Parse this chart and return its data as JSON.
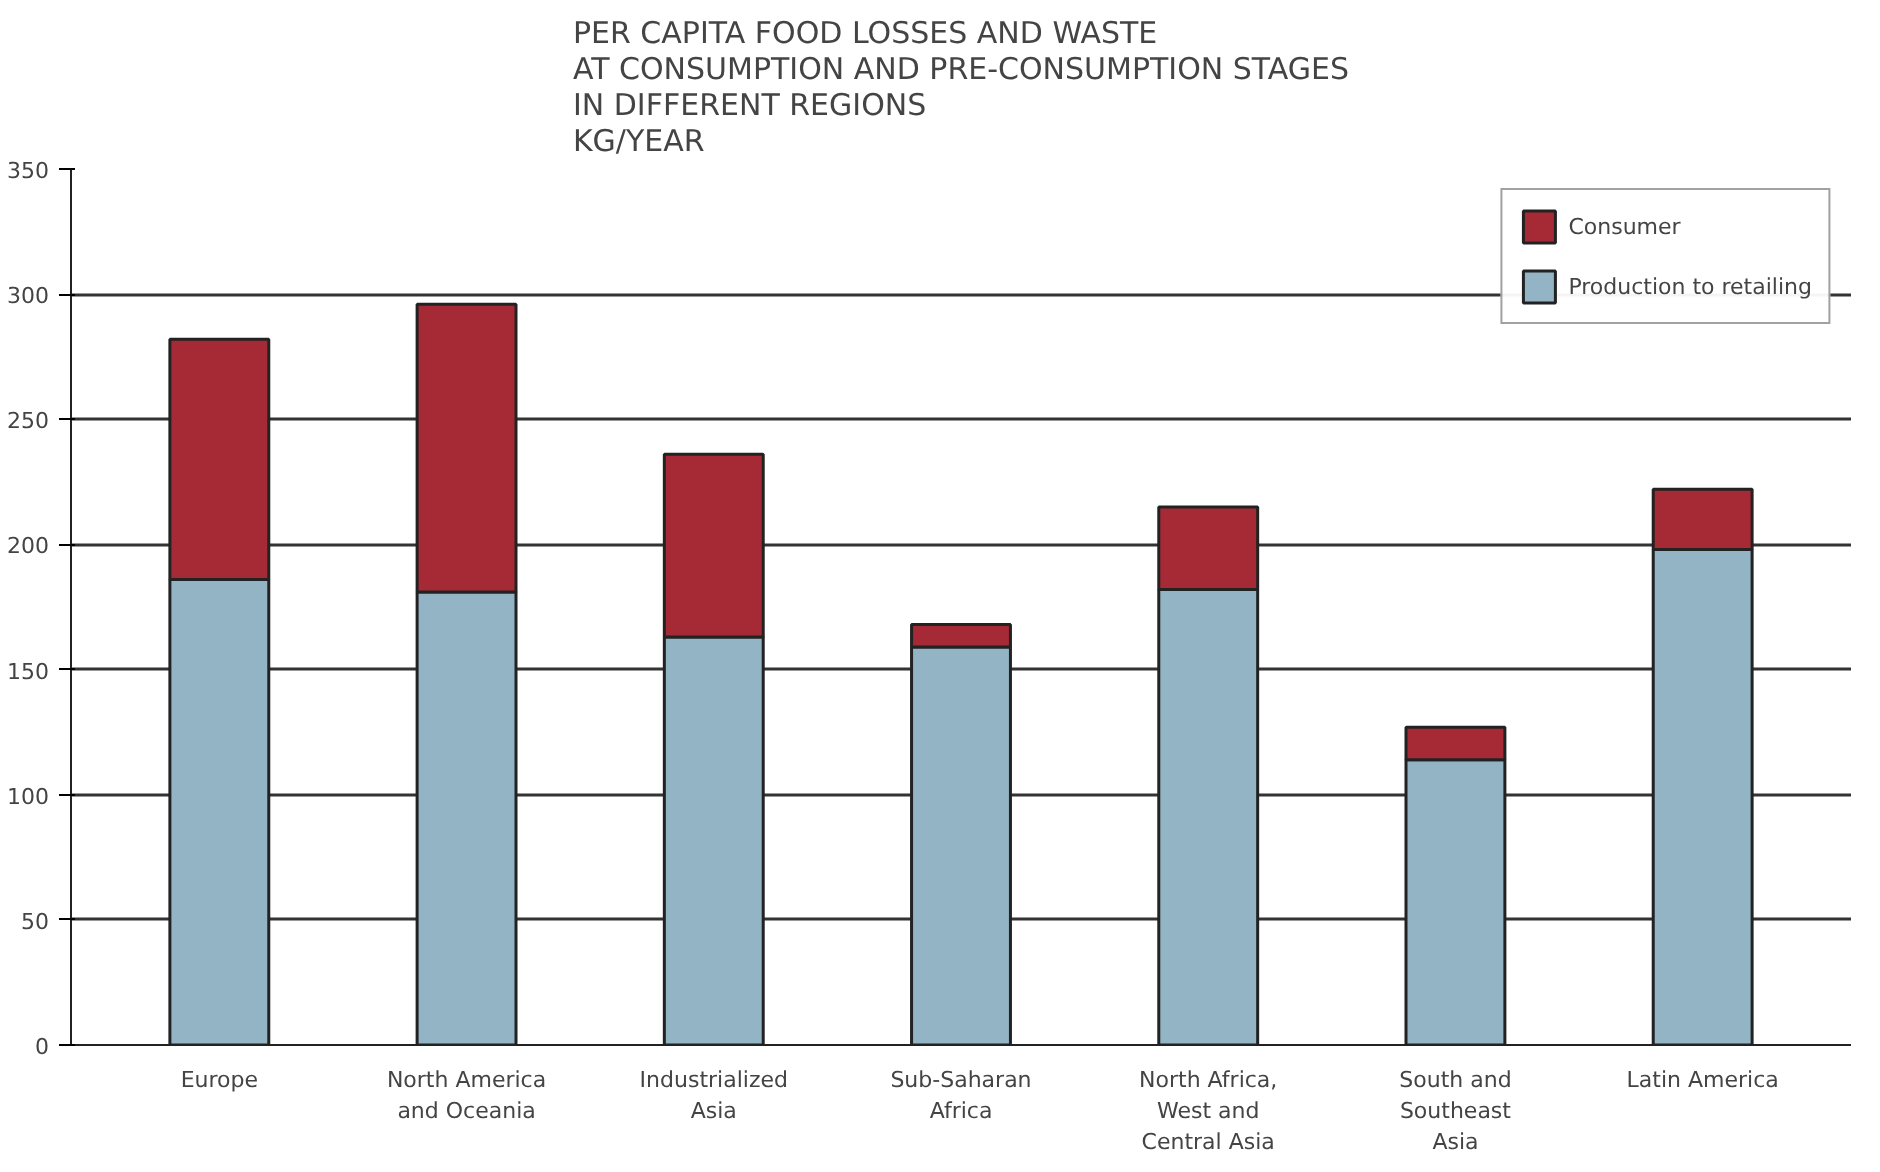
{
  "chart_data": {
    "type": "bar",
    "stacked": true,
    "title": "PER CAPITA FOOD LOSSES AND WASTE\nAT CONSUMPTION AND PRE-CONSUMPTION STAGES\nIN DIFFERENT REGIONS\nKG/YEAR",
    "categories": [
      "Europe",
      "North America and Oceania",
      "Industrialized Asia",
      "Sub-Saharan Africa",
      "North Africa, West and Central Asia",
      "South and Southeast Asia",
      "Latin America"
    ],
    "series": [
      {
        "name": "Production to retailing",
        "color": "#93b4c4",
        "values": [
          186,
          181,
          163,
          159,
          182,
          114,
          198
        ]
      },
      {
        "name": "Consumer",
        "color": "#a52a35",
        "values": [
          96,
          115,
          73,
          9,
          33,
          13,
          24
        ]
      }
    ],
    "ylim": [
      0,
      350
    ],
    "yticks": [
      0,
      50,
      100,
      150,
      200,
      250,
      300,
      350
    ],
    "grid": "y",
    "legend": "top right"
  }
}
